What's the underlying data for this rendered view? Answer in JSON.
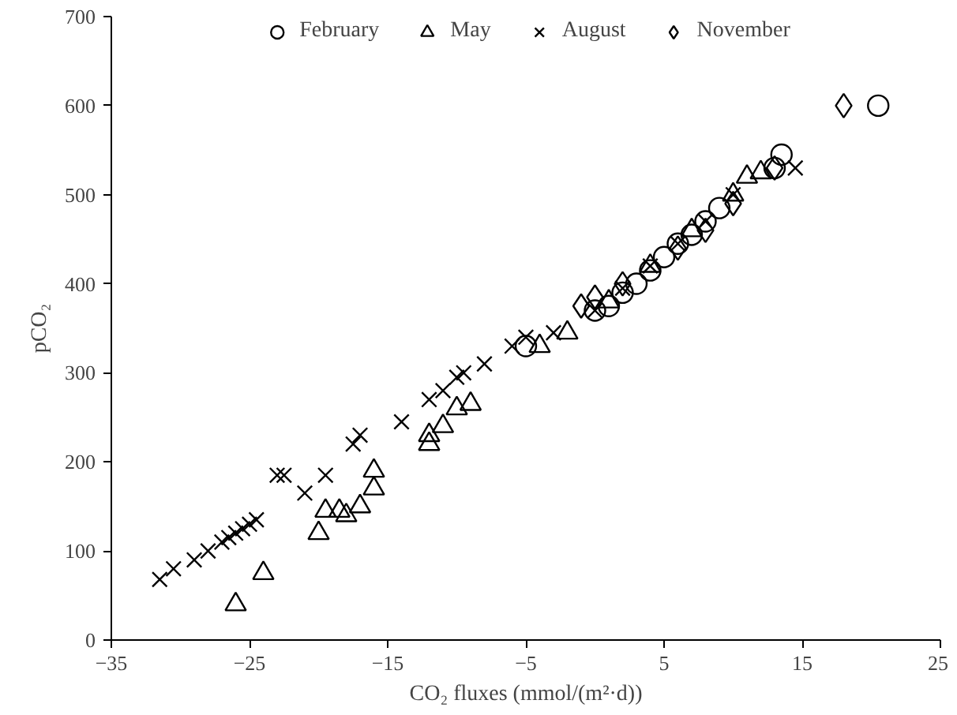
{
  "chart_data": {
    "type": "scatter",
    "xlabel": "CO₂ fluxes (mmol/(m²·d))",
    "ylabel": "pCO₂",
    "xlim": [
      -35,
      25
    ],
    "xticks": [
      -35,
      -25,
      -15,
      -5,
      5,
      15,
      25
    ],
    "ylim": [
      0,
      700
    ],
    "yticks": [
      0,
      100,
      200,
      300,
      400,
      500,
      600,
      700
    ],
    "grid": false,
    "legend": "top",
    "series": [
      {
        "name": "February",
        "color": "#000000",
        "marker": "circle",
        "x": [
          -5,
          0,
          1,
          2,
          3,
          4,
          5,
          6,
          7,
          8,
          9,
          13,
          13.5,
          20.5
        ],
        "values": [
          330,
          370,
          375,
          390,
          400,
          415,
          430,
          445,
          455,
          470,
          485,
          530,
          545,
          600
        ]
      },
      {
        "name": "May",
        "color": "#000000",
        "marker": "triangle",
        "x": [
          -26,
          -24,
          -20,
          -19.5,
          -18.5,
          -18,
          -17,
          -16,
          -16,
          -12,
          -12,
          -11,
          -10,
          -9,
          -4,
          -2,
          1,
          4,
          7,
          10,
          11,
          12
        ],
        "values": [
          40,
          75,
          120,
          145,
          145,
          140,
          150,
          190,
          170,
          230,
          220,
          240,
          260,
          265,
          330,
          345,
          380,
          420,
          460,
          500,
          520,
          525
        ]
      },
      {
        "name": "August",
        "color": "#000000",
        "marker": "cross",
        "x": [
          -31.5,
          -30.5,
          -29,
          -28,
          -27,
          -26.5,
          -26,
          -25.5,
          -25,
          -24.5,
          -23,
          -22.5,
          -21,
          -19.5,
          -17.5,
          -17,
          -14,
          -12,
          -11,
          -10,
          -9.5,
          -8,
          -6,
          -5,
          -3,
          0,
          2,
          4,
          6,
          8,
          10,
          14.5
        ],
        "values": [
          68,
          80,
          90,
          100,
          110,
          115,
          120,
          125,
          130,
          135,
          185,
          185,
          165,
          185,
          220,
          230,
          245,
          270,
          280,
          295,
          300,
          310,
          330,
          340,
          345,
          370,
          395,
          420,
          445,
          470,
          500,
          530
        ]
      },
      {
        "name": "November",
        "color": "#000000",
        "marker": "diamond",
        "x": [
          -1,
          0,
          2,
          6,
          8,
          10,
          13,
          18
        ],
        "values": [
          375,
          385,
          400,
          440,
          460,
          490,
          530,
          600
        ]
      }
    ]
  }
}
